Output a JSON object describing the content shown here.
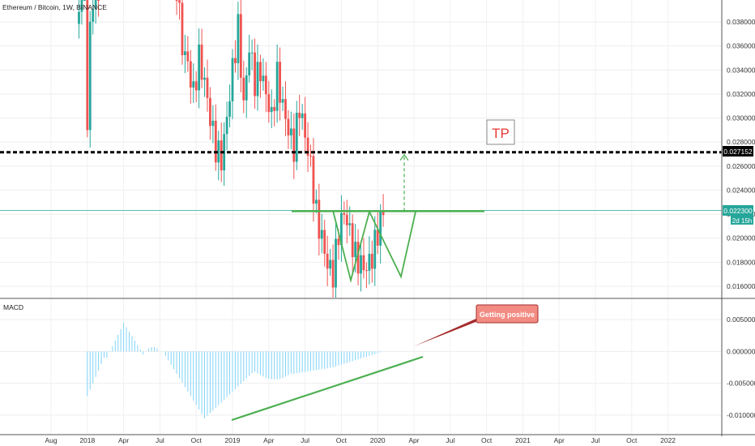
{
  "chart_data": [
    {
      "type": "candlestick",
      "title": "Ethereum / Bitcoin, 1W, BINANCE",
      "y_ticks": [
        "0.038000",
        "0.036000",
        "0.034000",
        "0.032000",
        "0.030000",
        "0.028000",
        "0.026000",
        "0.024000",
        "0.022000",
        "0.020000",
        "0.018000",
        "0.016000"
      ],
      "ylim": [
        0.0153,
        0.0395
      ],
      "x_ticks": [
        "Aug",
        "2018",
        "Apr",
        "Jul",
        "Oct",
        "2019",
        "Apr",
        "Jul",
        "Oct",
        "2020",
        "Apr",
        "Jul",
        "Oct",
        "2021",
        "Apr",
        "Jul",
        "Oct",
        "2022"
      ],
      "price_line": {
        "label": "0.027152",
        "value": 0.027152,
        "color": "#000000"
      },
      "current_price": {
        "label": "0.022300",
        "value": 0.0223,
        "color": "#26a69a"
      },
      "countdown": "2d 15h",
      "resistance_value": 0.02225,
      "annotation_tp": {
        "text": "TP",
        "color": "#e53935"
      },
      "colors": {
        "up": "#26a69a",
        "down": "#ef5350",
        "trend": "#4caf50"
      }
    },
    {
      "type": "bar",
      "title": "MACD",
      "y_ticks": [
        "0.005000",
        "0.000000",
        "-0.005000",
        "-0.010000"
      ],
      "ylim": [
        -0.0113,
        0.0063
      ],
      "annotation": {
        "text": "Getting positive",
        "bg": "#f28b82",
        "border": "#a62b2b",
        "arrow": "#a52a2a"
      },
      "bar_color": "#81d4fa"
    }
  ]
}
